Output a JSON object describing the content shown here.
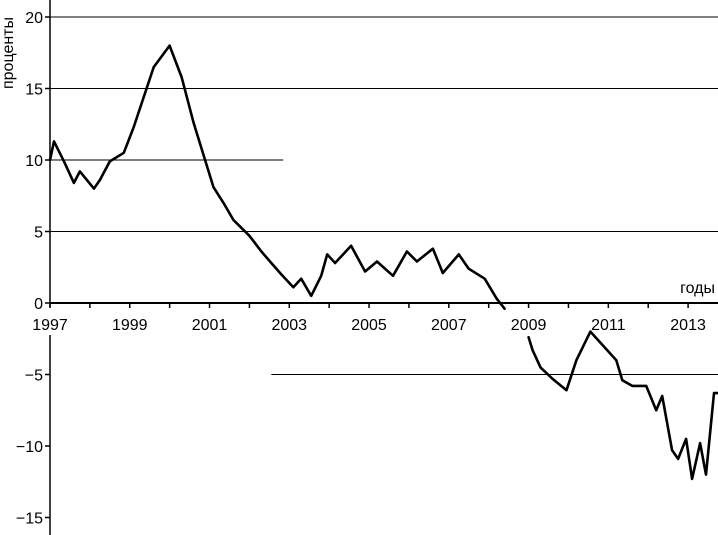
{
  "chart_data": {
    "type": "line",
    "ylabel": "проценты",
    "xlabel": "годы",
    "xlim": [
      1997,
      2013.75
    ],
    "ylim": [
      -16,
      20
    ],
    "y_ticks": [
      20,
      15,
      10,
      5,
      0,
      -5,
      -10,
      -15
    ],
    "y_tick_labels": [
      "20",
      "15",
      "10",
      "5",
      "0",
      "−5",
      "−10",
      "−15"
    ],
    "x_ticks": [
      1997,
      1999,
      2001,
      2003,
      2005,
      2007,
      2009,
      2011,
      2013
    ],
    "x_tick_labels": [
      "1997",
      "1999",
      "2001",
      "2003",
      "2005",
      "2007",
      "2009",
      "2011",
      "2013"
    ],
    "gridlines": [
      {
        "y": 20,
        "x_from": 1997,
        "x_to": 2013.75
      },
      {
        "y": 15,
        "x_from": 1997,
        "x_to": 2013.75
      },
      {
        "y": 10,
        "x_from": 1997,
        "x_to": 2002.85
      },
      {
        "y": 5,
        "x_from": 1997,
        "x_to": 2013.75
      },
      {
        "y": -5,
        "x_from": 2002.55,
        "x_to": 2013.75
      }
    ],
    "series": [
      {
        "x": [
          1997.0,
          1997.1,
          1997.35,
          1997.6,
          1997.75,
          1998.1,
          1998.25,
          1998.5,
          1998.85,
          1999.1,
          1999.6,
          2000.0,
          2000.3,
          2000.6,
          2000.9,
          2001.1,
          2001.35,
          2001.6,
          2002.0,
          2002.3,
          2002.55,
          2002.8,
          2003.1,
          2003.3,
          2003.55,
          2003.8,
          2003.95,
          2004.15,
          2004.55,
          2004.9,
          2005.2,
          2005.6,
          2005.95,
          2006.2,
          2006.6,
          2006.85,
          2007.25,
          2007.5,
          2007.9,
          2008.2,
          2008.4
        ],
        "y": [
          10.0,
          11.3,
          9.9,
          8.4,
          9.2,
          8.0,
          8.6,
          9.9,
          10.5,
          12.3,
          16.5,
          18.0,
          15.8,
          12.6,
          9.9,
          8.1,
          7.0,
          5.8,
          4.7,
          3.6,
          2.8,
          2.0,
          1.1,
          1.7,
          0.5,
          1.9,
          3.4,
          2.8,
          4.0,
          2.2,
          2.9,
          1.9,
          3.6,
          2.9,
          3.8,
          2.1,
          3.4,
          2.4,
          1.7,
          0.3,
          -0.4
        ]
      },
      {
        "x": [
          2009.0,
          2009.1,
          2009.3,
          2009.6,
          2009.95,
          2010.2,
          2010.55,
          2011.2,
          2011.35,
          2011.6,
          2011.95,
          2012.2,
          2012.35,
          2012.6,
          2012.75,
          2012.95,
          2013.1,
          2013.3,
          2013.45,
          2013.65,
          2013.75
        ],
        "y": [
          -2.4,
          -3.3,
          -4.5,
          -5.3,
          -6.1,
          -4.0,
          -2.0,
          -4.0,
          -5.4,
          -5.8,
          -5.8,
          -7.5,
          -6.5,
          -10.3,
          -10.9,
          -9.5,
          -12.3,
          -9.8,
          -12.0,
          -6.3,
          -6.3
        ]
      }
    ]
  },
  "colors": {
    "line": "#000000",
    "grid": "#000000",
    "background": "#ffffff"
  }
}
